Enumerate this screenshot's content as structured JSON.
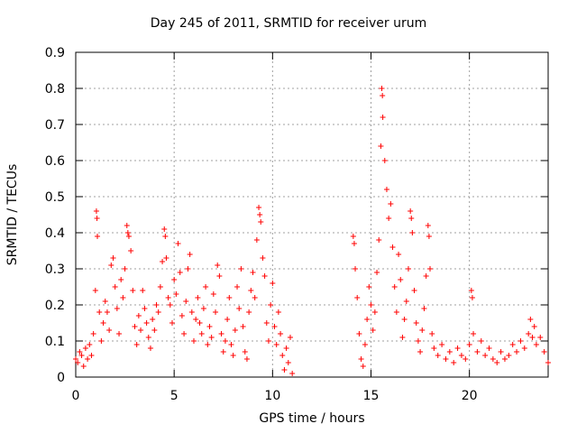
{
  "chart_data": {
    "type": "scatter",
    "title": "Day 245 of 2011, SRMTID for receiver urum",
    "xlabel": "GPS time / hours",
    "ylabel": "SRMTID / TECUs",
    "xlim": [
      0,
      24
    ],
    "ylim": [
      0,
      0.9
    ],
    "xticks": [
      0,
      5,
      10,
      15,
      20
    ],
    "yticks": [
      0,
      0.1,
      0.2,
      0.3,
      0.4,
      0.5,
      0.6,
      0.7,
      0.8,
      0.9
    ],
    "grid": true,
    "marker": "+",
    "color": "#ff0000",
    "series": [
      {
        "name": "SRMTID",
        "points": [
          [
            0.0,
            0.05
          ],
          [
            0.1,
            0.04
          ],
          [
            0.2,
            0.07
          ],
          [
            0.3,
            0.06
          ],
          [
            0.4,
            0.03
          ],
          [
            0.5,
            0.08
          ],
          [
            0.6,
            0.05
          ],
          [
            0.7,
            0.09
          ],
          [
            0.8,
            0.06
          ],
          [
            0.9,
            0.12
          ],
          [
            1.0,
            0.24
          ],
          [
            1.05,
            0.46
          ],
          [
            1.08,
            0.44
          ],
          [
            1.1,
            0.39
          ],
          [
            1.2,
            0.18
          ],
          [
            1.3,
            0.1
          ],
          [
            1.4,
            0.15
          ],
          [
            1.5,
            0.21
          ],
          [
            1.6,
            0.18
          ],
          [
            1.7,
            0.13
          ],
          [
            1.8,
            0.31
          ],
          [
            1.9,
            0.33
          ],
          [
            2.0,
            0.25
          ],
          [
            2.1,
            0.19
          ],
          [
            2.2,
            0.12
          ],
          [
            2.3,
            0.27
          ],
          [
            2.4,
            0.22
          ],
          [
            2.5,
            0.3
          ],
          [
            2.6,
            0.42
          ],
          [
            2.65,
            0.4
          ],
          [
            2.7,
            0.39
          ],
          [
            2.8,
            0.35
          ],
          [
            2.9,
            0.24
          ],
          [
            3.0,
            0.14
          ],
          [
            3.1,
            0.09
          ],
          [
            3.2,
            0.17
          ],
          [
            3.3,
            0.13
          ],
          [
            3.4,
            0.24
          ],
          [
            3.5,
            0.19
          ],
          [
            3.6,
            0.15
          ],
          [
            3.7,
            0.11
          ],
          [
            3.8,
            0.08
          ],
          [
            3.9,
            0.16
          ],
          [
            4.0,
            0.13
          ],
          [
            4.1,
            0.2
          ],
          [
            4.2,
            0.18
          ],
          [
            4.3,
            0.25
          ],
          [
            4.4,
            0.32
          ],
          [
            4.5,
            0.41
          ],
          [
            4.55,
            0.39
          ],
          [
            4.6,
            0.33
          ],
          [
            4.7,
            0.22
          ],
          [
            4.8,
            0.2
          ],
          [
            4.9,
            0.15
          ],
          [
            5.0,
            0.27
          ],
          [
            5.1,
            0.23
          ],
          [
            5.2,
            0.37
          ],
          [
            5.3,
            0.29
          ],
          [
            5.4,
            0.17
          ],
          [
            5.5,
            0.12
          ],
          [
            5.6,
            0.21
          ],
          [
            5.7,
            0.3
          ],
          [
            5.8,
            0.34
          ],
          [
            5.9,
            0.18
          ],
          [
            6.0,
            0.1
          ],
          [
            6.1,
            0.16
          ],
          [
            6.2,
            0.22
          ],
          [
            6.3,
            0.15
          ],
          [
            6.4,
            0.12
          ],
          [
            6.5,
            0.19
          ],
          [
            6.6,
            0.25
          ],
          [
            6.7,
            0.09
          ],
          [
            6.8,
            0.14
          ],
          [
            6.9,
            0.11
          ],
          [
            7.0,
            0.23
          ],
          [
            7.1,
            0.18
          ],
          [
            7.2,
            0.31
          ],
          [
            7.3,
            0.28
          ],
          [
            7.4,
            0.12
          ],
          [
            7.5,
            0.07
          ],
          [
            7.6,
            0.1
          ],
          [
            7.7,
            0.16
          ],
          [
            7.8,
            0.22
          ],
          [
            7.9,
            0.09
          ],
          [
            8.0,
            0.06
          ],
          [
            8.1,
            0.13
          ],
          [
            8.2,
            0.25
          ],
          [
            8.3,
            0.19
          ],
          [
            8.4,
            0.3
          ],
          [
            8.5,
            0.14
          ],
          [
            8.6,
            0.07
          ],
          [
            8.7,
            0.05
          ],
          [
            8.8,
            0.18
          ],
          [
            8.9,
            0.24
          ],
          [
            9.0,
            0.29
          ],
          [
            9.1,
            0.22
          ],
          [
            9.2,
            0.38
          ],
          [
            9.3,
            0.47
          ],
          [
            9.35,
            0.45
          ],
          [
            9.4,
            0.43
          ],
          [
            9.5,
            0.33
          ],
          [
            9.6,
            0.28
          ],
          [
            9.7,
            0.15
          ],
          [
            9.8,
            0.1
          ],
          [
            9.9,
            0.2
          ],
          [
            10.0,
            0.26
          ],
          [
            10.1,
            0.14
          ],
          [
            10.2,
            0.09
          ],
          [
            10.3,
            0.18
          ],
          [
            10.4,
            0.12
          ],
          [
            10.5,
            0.06
          ],
          [
            10.6,
            0.02
          ],
          [
            10.7,
            0.08
          ],
          [
            10.8,
            0.04
          ],
          [
            10.9,
            0.11
          ],
          [
            11.0,
            0.01
          ],
          [
            14.1,
            0.39
          ],
          [
            14.15,
            0.37
          ],
          [
            14.2,
            0.3
          ],
          [
            14.3,
            0.22
          ],
          [
            14.4,
            0.12
          ],
          [
            14.5,
            0.05
          ],
          [
            14.6,
            0.03
          ],
          [
            14.7,
            0.09
          ],
          [
            14.8,
            0.16
          ],
          [
            14.9,
            0.25
          ],
          [
            15.0,
            0.2
          ],
          [
            15.1,
            0.13
          ],
          [
            15.2,
            0.18
          ],
          [
            15.3,
            0.29
          ],
          [
            15.4,
            0.38
          ],
          [
            15.5,
            0.64
          ],
          [
            15.55,
            0.8
          ],
          [
            15.58,
            0.78
          ],
          [
            15.6,
            0.72
          ],
          [
            15.7,
            0.6
          ],
          [
            15.8,
            0.52
          ],
          [
            15.9,
            0.44
          ],
          [
            16.0,
            0.48
          ],
          [
            16.1,
            0.36
          ],
          [
            16.2,
            0.25
          ],
          [
            16.3,
            0.18
          ],
          [
            16.4,
            0.34
          ],
          [
            16.5,
            0.27
          ],
          [
            16.6,
            0.11
          ],
          [
            16.7,
            0.16
          ],
          [
            16.8,
            0.21
          ],
          [
            16.9,
            0.3
          ],
          [
            17.0,
            0.46
          ],
          [
            17.05,
            0.44
          ],
          [
            17.1,
            0.4
          ],
          [
            17.2,
            0.24
          ],
          [
            17.3,
            0.15
          ],
          [
            17.4,
            0.1
          ],
          [
            17.5,
            0.07
          ],
          [
            17.6,
            0.13
          ],
          [
            17.7,
            0.19
          ],
          [
            17.8,
            0.28
          ],
          [
            17.9,
            0.42
          ],
          [
            17.95,
            0.39
          ],
          [
            18.0,
            0.3
          ],
          [
            18.1,
            0.12
          ],
          [
            18.2,
            0.08
          ],
          [
            18.4,
            0.06
          ],
          [
            18.6,
            0.09
          ],
          [
            18.8,
            0.05
          ],
          [
            19.0,
            0.07
          ],
          [
            19.2,
            0.04
          ],
          [
            19.4,
            0.08
          ],
          [
            19.6,
            0.06
          ],
          [
            19.8,
            0.05
          ],
          [
            20.0,
            0.09
          ],
          [
            20.1,
            0.24
          ],
          [
            20.15,
            0.22
          ],
          [
            20.2,
            0.12
          ],
          [
            20.4,
            0.07
          ],
          [
            20.6,
            0.1
          ],
          [
            20.8,
            0.06
          ],
          [
            21.0,
            0.08
          ],
          [
            21.2,
            0.05
          ],
          [
            21.4,
            0.04
          ],
          [
            21.6,
            0.07
          ],
          [
            21.8,
            0.05
          ],
          [
            22.0,
            0.06
          ],
          [
            22.2,
            0.09
          ],
          [
            22.4,
            0.07
          ],
          [
            22.6,
            0.1
          ],
          [
            22.8,
            0.08
          ],
          [
            23.0,
            0.12
          ],
          [
            23.1,
            0.16
          ],
          [
            23.2,
            0.11
          ],
          [
            23.3,
            0.14
          ],
          [
            23.4,
            0.09
          ],
          [
            23.6,
            0.11
          ],
          [
            23.8,
            0.07
          ],
          [
            24.0,
            0.04
          ]
        ]
      }
    ]
  }
}
